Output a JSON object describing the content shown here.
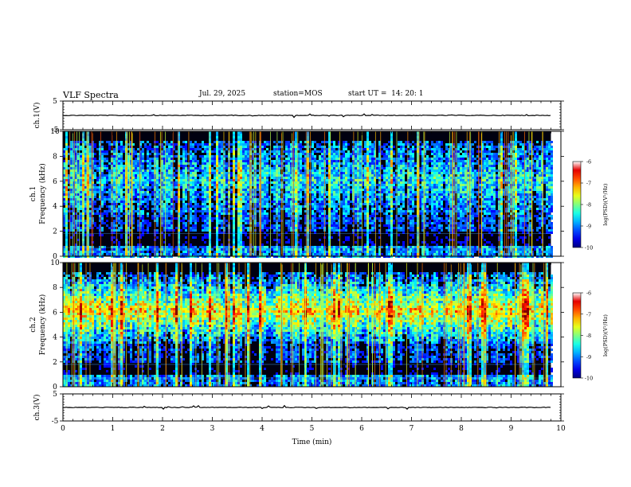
{
  "header": {
    "title": "VLF Spectra",
    "date": "Jul. 29, 2025",
    "station": "station=MOS",
    "start": "start UT =  14: 20: 1"
  },
  "chart_data": [
    {
      "type": "line",
      "name": "ch1-waveform",
      "ylabel": "ch.1(V)",
      "ylim": [
        -5,
        5
      ],
      "yticks": [
        "5",
        "-5"
      ],
      "x": [
        0,
        9.8
      ],
      "values": [
        0,
        0
      ]
    },
    {
      "type": "heatmap",
      "name": "ch1-spectrogram",
      "ylabel": "ch.1\nFrequency (kHz)",
      "ylim": [
        0,
        10
      ],
      "yticks": [
        "0",
        "2",
        "4",
        "6",
        "8",
        "10"
      ],
      "xlim": [
        0,
        9.8
      ],
      "colorbar": {
        "label": "log(PSD)(V²/Hz)",
        "ticks": [
          "-6",
          "-7",
          "-8",
          "-9",
          "-10"
        ],
        "range": [
          -10,
          -6
        ]
      }
    },
    {
      "type": "heatmap",
      "name": "ch2-spectrogram",
      "ylabel": "ch.2\nFrequency (kHz)",
      "ylim": [
        0,
        10
      ],
      "yticks": [
        "0",
        "2",
        "4",
        "6",
        "8",
        "10"
      ],
      "xlim": [
        0,
        9.8
      ],
      "colorbar": {
        "label": "log(PSD)(V²/Hz)",
        "ticks": [
          "-6",
          "-7",
          "-8",
          "-9",
          "-10"
        ],
        "range": [
          -10,
          -6
        ]
      }
    },
    {
      "type": "line",
      "name": "ch3-waveform",
      "ylabel": "ch.3(V)",
      "ylim": [
        -5,
        5
      ],
      "yticks": [
        "5",
        "-5"
      ],
      "x": [
        0,
        9.8
      ],
      "values": [
        0,
        0
      ]
    }
  ],
  "xaxis": {
    "label": "Time (min)",
    "ticks": [
      "0",
      "1",
      "2",
      "3",
      "4",
      "5",
      "6",
      "7",
      "8",
      "9",
      "10"
    ],
    "range": [
      0,
      10
    ]
  },
  "colors": {
    "axis": "#000000",
    "background": "#ffffff"
  }
}
